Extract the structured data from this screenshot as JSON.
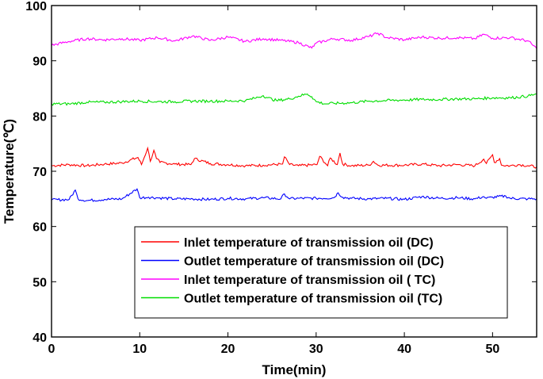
{
  "chart_data": {
    "type": "line",
    "title": "",
    "xlabel": "Time(min)",
    "ylabel": "Temperature(℃)",
    "xlim": [
      0,
      55
    ],
    "ylim": [
      40,
      100
    ],
    "x_ticks": [
      0,
      10,
      20,
      30,
      40,
      50
    ],
    "y_ticks": [
      40,
      50,
      60,
      70,
      80,
      90,
      100
    ],
    "grid": false,
    "legend_position": "bottom-center",
    "series": [
      {
        "name": "Inlet temperature of transmission oil (DC)",
        "color": "#ff0000",
        "x": [
          0,
          2,
          4,
          6,
          8,
          9.8,
          10.2,
          10.9,
          11.2,
          11.6,
          11.9,
          12.3,
          14,
          15.8,
          16.2,
          18,
          20,
          22,
          24,
          26.2,
          26.4,
          27,
          28,
          30.1,
          30.4,
          31.3,
          31.6,
          32.4,
          32.7,
          33,
          34,
          36,
          36.5,
          37,
          40,
          42,
          44,
          46,
          48,
          49,
          49.3,
          50,
          50.2,
          50.8,
          51,
          52,
          53,
          54,
          55
        ],
        "y": [
          71,
          71.2,
          71,
          71.3,
          71.5,
          72.5,
          71.2,
          74.2,
          71.8,
          73.8,
          72.3,
          71.6,
          71.3,
          71.2,
          72.3,
          71.4,
          71.2,
          71,
          71.1,
          71.3,
          72.6,
          71.2,
          71,
          71.2,
          72.7,
          71,
          72.4,
          71.2,
          73.3,
          71.3,
          71,
          71.1,
          71.8,
          71.1,
          71.1,
          71.3,
          71,
          71.2,
          71,
          72.2,
          71.4,
          73,
          71.6,
          72.3,
          71.1,
          71,
          71.2,
          71,
          70.8
        ]
      },
      {
        "name": "Outlet temperature of transmission oil (DC)",
        "color": "#0000ff",
        "x": [
          0,
          2,
          2.7,
          3,
          4,
          6,
          8,
          9.7,
          10,
          11,
          12,
          14,
          16,
          18,
          20,
          22,
          24,
          26,
          26.4,
          27,
          28,
          30,
          32,
          32.5,
          33,
          34,
          36,
          38,
          40,
          42,
          44,
          46,
          48,
          49,
          49.3,
          50,
          51.5,
          52,
          54,
          55
        ],
        "y": [
          64.8,
          64.9,
          66.6,
          65,
          64.7,
          64.9,
          65,
          66.8,
          65.2,
          65.3,
          65.2,
          65,
          65,
          64.9,
          65.1,
          65,
          65.2,
          65,
          65.9,
          65,
          65.1,
          65.1,
          65.2,
          66.1,
          65.3,
          65.1,
          65,
          65.1,
          64.9,
          65.4,
          65.1,
          65.2,
          65,
          65.4,
          65.1,
          65.3,
          65.5,
          65.1,
          65,
          65
        ]
      },
      {
        "name": "Inlet temperature of transmission oil ( TC)",
        "color": "#ff00ff",
        "x": [
          0,
          2,
          4,
          6,
          8,
          10,
          12,
          14,
          16,
          18,
          20,
          22,
          24,
          26,
          28,
          29.5,
          30,
          32,
          34,
          36,
          37,
          38,
          40,
          42,
          44,
          46,
          48,
          49,
          50,
          52,
          54,
          55
        ],
        "y": [
          92.8,
          93.5,
          94,
          93.8,
          94,
          93.7,
          94.2,
          93.6,
          94.5,
          93.7,
          94.3,
          93.5,
          94,
          93.7,
          93.3,
          92.3,
          93.2,
          94,
          93.7,
          94.4,
          95,
          94.2,
          93.8,
          94.3,
          94.1,
          94.2,
          94,
          94.8,
          94.1,
          94.2,
          93.6,
          92.2
        ]
      },
      {
        "name": "Outlet temperature of transmission oil (TC)",
        "color": "#00dd00",
        "x": [
          0,
          2,
          4,
          6,
          8,
          10,
          12,
          14,
          16,
          18,
          20,
          22,
          23,
          24,
          24.5,
          25.5,
          27,
          28,
          29,
          29.5,
          30,
          31,
          32,
          34,
          36,
          38,
          40,
          42,
          44,
          46,
          48,
          50,
          52,
          54,
          55
        ],
        "y": [
          82.2,
          82.2,
          82.5,
          82.5,
          82.6,
          82.7,
          82.6,
          82.6,
          82.7,
          82.7,
          82.7,
          82.8,
          83.2,
          83.7,
          83.3,
          82.8,
          83.1,
          83.6,
          84,
          83.5,
          82.6,
          82.2,
          82.3,
          82.4,
          82.7,
          82.8,
          82.9,
          83,
          83,
          83.1,
          83.1,
          83.3,
          83.3,
          83.6,
          84
        ]
      }
    ]
  }
}
